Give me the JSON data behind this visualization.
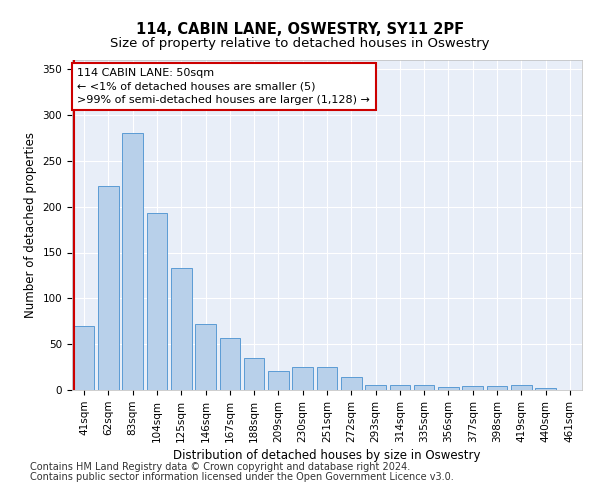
{
  "title": "114, CABIN LANE, OSWESTRY, SY11 2PF",
  "subtitle": "Size of property relative to detached houses in Oswestry",
  "xlabel": "Distribution of detached houses by size in Oswestry",
  "ylabel": "Number of detached properties",
  "categories": [
    "41sqm",
    "62sqm",
    "83sqm",
    "104sqm",
    "125sqm",
    "146sqm",
    "167sqm",
    "188sqm",
    "209sqm",
    "230sqm",
    "251sqm",
    "272sqm",
    "293sqm",
    "314sqm",
    "335sqm",
    "356sqm",
    "377sqm",
    "398sqm",
    "419sqm",
    "440sqm",
    "461sqm"
  ],
  "values": [
    70,
    222,
    280,
    193,
    133,
    72,
    57,
    35,
    21,
    25,
    25,
    14,
    6,
    6,
    6,
    3,
    4,
    4,
    5,
    2,
    0
  ],
  "bar_color": "#b8d0ea",
  "bar_edge_color": "#5b9bd5",
  "highlight_line_color": "#cc0000",
  "ylim": [
    0,
    360
  ],
  "yticks": [
    0,
    50,
    100,
    150,
    200,
    250,
    300,
    350
  ],
  "annotation_line1": "114 CABIN LANE: 50sqm",
  "annotation_line2": "← <1% of detached houses are smaller (5)",
  "annotation_line3": ">99% of semi-detached houses are larger (1,128) →",
  "annotation_box_color": "#ffffff",
  "annotation_box_edge_color": "#cc0000",
  "footer1": "Contains HM Land Registry data © Crown copyright and database right 2024.",
  "footer2": "Contains public sector information licensed under the Open Government Licence v3.0.",
  "bg_color": "#e8eef8",
  "grid_color": "#ffffff",
  "title_fontsize": 10.5,
  "subtitle_fontsize": 9.5,
  "axis_label_fontsize": 8.5,
  "tick_fontsize": 7.5,
  "annotation_fontsize": 8,
  "footer_fontsize": 7
}
